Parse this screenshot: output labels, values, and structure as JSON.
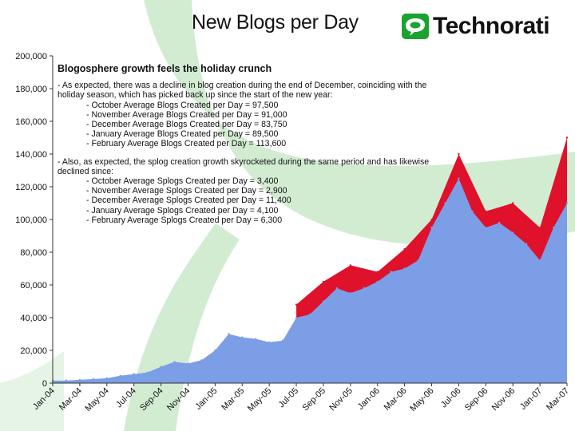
{
  "header": {
    "title": "New Blogs per Day",
    "logo_text": "Technorati"
  },
  "annotation": {
    "heading": "Blogosphere growth feels the holiday crunch",
    "para1": "- As expected, there was a decline in blog creation during the end of December, coinciding with the holiday season, which has picked back up since the start of the new year:",
    "blog_stats": [
      "October Average Blogs Created per Day = 97,500",
      "November Average Blogs Created per Day = 91,000",
      "December Average Blogs Created per Day = 83,750",
      "January Average Blogs Created per Day = 89,500",
      "February Average Blogs Created per Day = 113,600"
    ],
    "para2": "- Also, as expected, the splog creation growth skyrocketed during the same period and has likewise declined since:",
    "splog_stats": [
      "October Average Splogs Created per Day = 3,400",
      "November Average Splogs Created per Day = 2,900",
      "December Average Splogs Created per Day = 11,400",
      "January Average Splogs Created per Day = 4,100",
      "February Average Splogs Created per Day = 6,300"
    ]
  },
  "colors": {
    "blue_area": "#7b9ee6",
    "red_area": "#e0112b",
    "swoosh": "#d2ecd2",
    "logo_green": "#1aa331"
  },
  "chart_data": {
    "type": "area",
    "title": "New Blogs per Day",
    "ylim": [
      0,
      200000
    ],
    "yticks": [
      0,
      20000,
      40000,
      60000,
      80000,
      100000,
      120000,
      140000,
      160000,
      180000,
      200000
    ],
    "ytick_labels": [
      "0",
      "20,000",
      "40,000",
      "60,000",
      "80,000",
      "100,000",
      "120,000",
      "140,000",
      "160,000",
      "180,000",
      "200,000"
    ],
    "xtick_labels": [
      "Jan-04",
      "Mar-04",
      "May-04",
      "Jul-04",
      "Sep-04",
      "Nov-04",
      "Jan-05",
      "Mar-05",
      "May-05",
      "Jul-05",
      "Sep-05",
      "Nov-05",
      "Jan-06",
      "Mar-06",
      "May-06",
      "Jul-06",
      "Sep-06",
      "Nov-06",
      "Jan-07",
      "Mar-07"
    ],
    "grid": false,
    "series": [
      {
        "name": "",
        "color": "#7b9ee6",
        "x": [
          "Jan-04",
          "Feb-04",
          "Mar-04",
          "Apr-04",
          "May-04",
          "Jun-04",
          "Jul-04",
          "Aug-04",
          "Sep-04",
          "Oct-04",
          "Nov-04",
          "Dec-04",
          "Jan-05",
          "Feb-05",
          "Mar-05",
          "Apr-05",
          "May-05",
          "Jun-05",
          "Jul-05",
          "Aug-05",
          "Sep-05",
          "Oct-05",
          "Nov-05",
          "Dec-05",
          "Jan-06",
          "Feb-06",
          "Mar-06",
          "Apr-06",
          "May-06",
          "Jun-06",
          "Jul-06",
          "Aug-06",
          "Sep-06",
          "Oct-06",
          "Nov-06",
          "Dec-06",
          "Jan-07",
          "Feb-07",
          "Mar-07"
        ],
        "values": [
          1500,
          1600,
          2000,
          2500,
          3000,
          4500,
          5500,
          6500,
          10000,
          13000,
          12000,
          14000,
          20000,
          30000,
          28000,
          27000,
          25000,
          26000,
          40000,
          42000,
          50000,
          58000,
          55000,
          58000,
          62000,
          68000,
          70000,
          75000,
          95000,
          110000,
          125000,
          105000,
          95000,
          98000,
          92000,
          85000,
          75000,
          95000,
          110000
        ]
      },
      {
        "name": "",
        "color": "#e0112b",
        "x": [
          "Jul-05",
          "Sep-05",
          "Nov-05",
          "Jan-06",
          "Mar-06",
          "May-06",
          "Jul-06",
          "Sep-06",
          "Nov-06",
          "Jan-07",
          "Mar-07"
        ],
        "values": [
          48000,
          62000,
          72000,
          68000,
          82000,
          100000,
          140000,
          105000,
          110000,
          95000,
          150000
        ]
      }
    ]
  }
}
